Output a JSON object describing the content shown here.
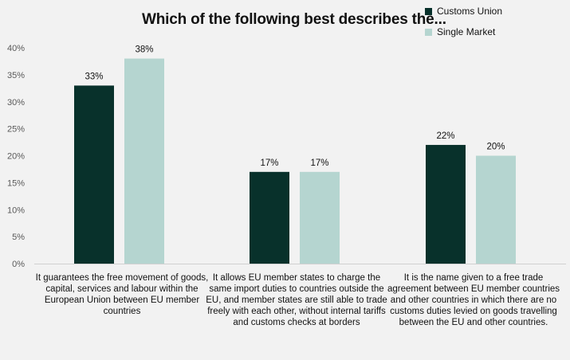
{
  "chart_data": {
    "type": "bar",
    "title": "Which of the following best describes the...",
    "categories": [
      "It guarantees the free movement of goods, capital, services and labour within the European Union between EU member countries",
      "It allows EU member states to charge the same import duties to countries outside the EU, and member states are still able to trade freely with each other, without internal tariffs and customs checks at borders",
      "It is the name given to a free trade agreement between EU member countries and other countries in which there are no customs duties levied on goods travelling between the EU and other countries."
    ],
    "series": [
      {
        "name": "Customs Union",
        "color": "#08312b",
        "values": [
          33,
          17,
          22
        ]
      },
      {
        "name": "Single Market",
        "color": "#b5d5d0",
        "values": [
          38,
          17,
          20
        ]
      }
    ],
    "y_ticks": [
      "0%",
      "5%",
      "10%",
      "15%",
      "20%",
      "25%",
      "30%",
      "35%",
      "40%"
    ],
    "data_labels": [
      [
        "33%",
        "17%",
        "22%"
      ],
      [
        "38%",
        "17%",
        "20%"
      ]
    ],
    "ylim": [
      0,
      40
    ],
    "xlabel": "",
    "ylabel": "",
    "grid": false,
    "legend_position": "top-right"
  }
}
